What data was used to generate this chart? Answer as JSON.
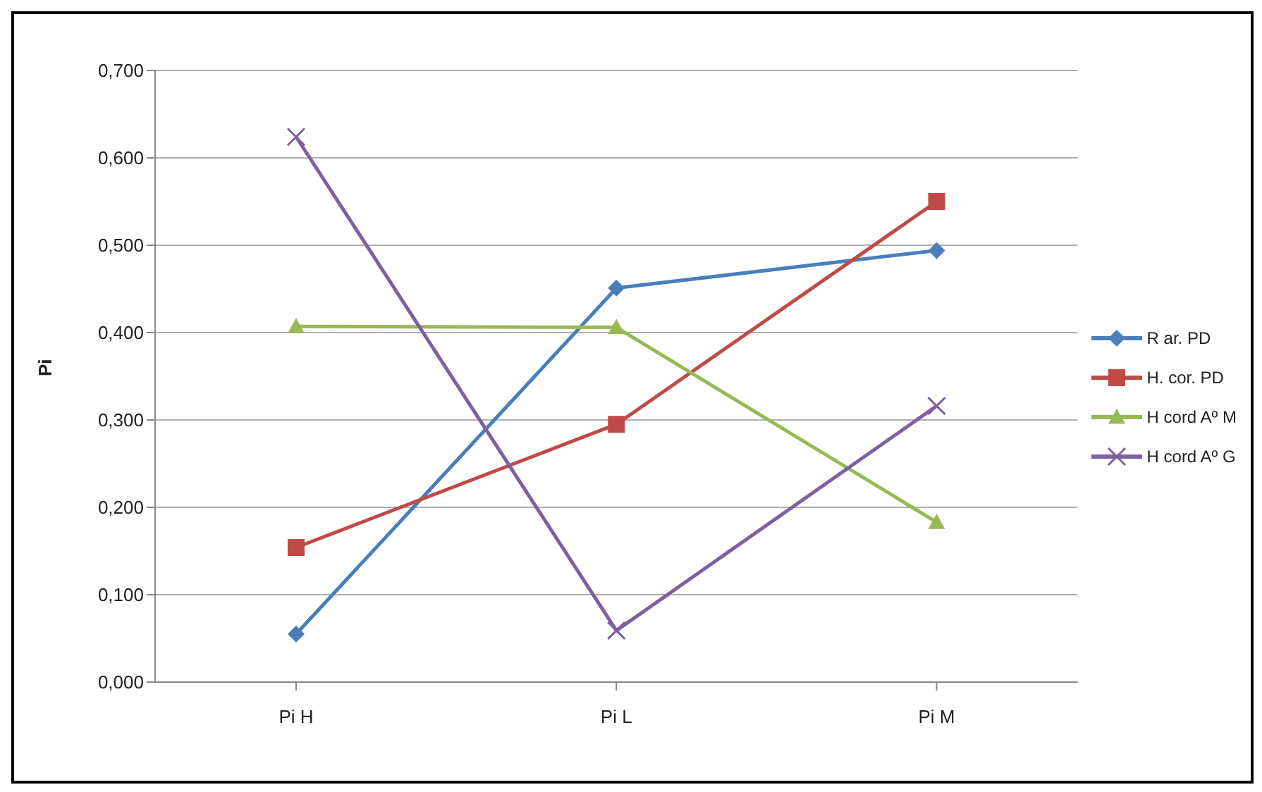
{
  "chart_data": {
    "type": "line",
    "ylabel": "Pi",
    "categories": [
      "Pi H",
      "Pi L",
      "Pi M"
    ],
    "series": [
      {
        "name": "R ar. PD",
        "color": "#4a7ebb",
        "marker": "diamond",
        "values": [
          0.055,
          0.451,
          0.494
        ]
      },
      {
        "name": "H. cor. PD",
        "color": "#be4b48",
        "marker": "square",
        "values": [
          0.154,
          0.295,
          0.55
        ]
      },
      {
        "name": "H cord Aº M",
        "color": "#98b954",
        "marker": "triangle",
        "values": [
          0.407,
          0.406,
          0.183
        ]
      },
      {
        "name": "H cord Aº G",
        "color": "#7d60a0",
        "marker": "cross",
        "values": [
          0.624,
          0.059,
          0.316
        ]
      }
    ],
    "ylim": [
      0,
      0.7
    ],
    "yticks": [
      {
        "value": 0,
        "label": "0,000"
      },
      {
        "value": 0.1,
        "label": "0,100"
      },
      {
        "value": 0.2,
        "label": "0,200"
      },
      {
        "value": 0.3,
        "label": "0,300"
      },
      {
        "value": 0.4,
        "label": "0,400"
      },
      {
        "value": 0.5,
        "label": "0,500"
      },
      {
        "value": 0.6,
        "label": "0,600"
      },
      {
        "value": 0.7,
        "label": "0,700"
      }
    ],
    "grid": "y",
    "legend": "right"
  }
}
